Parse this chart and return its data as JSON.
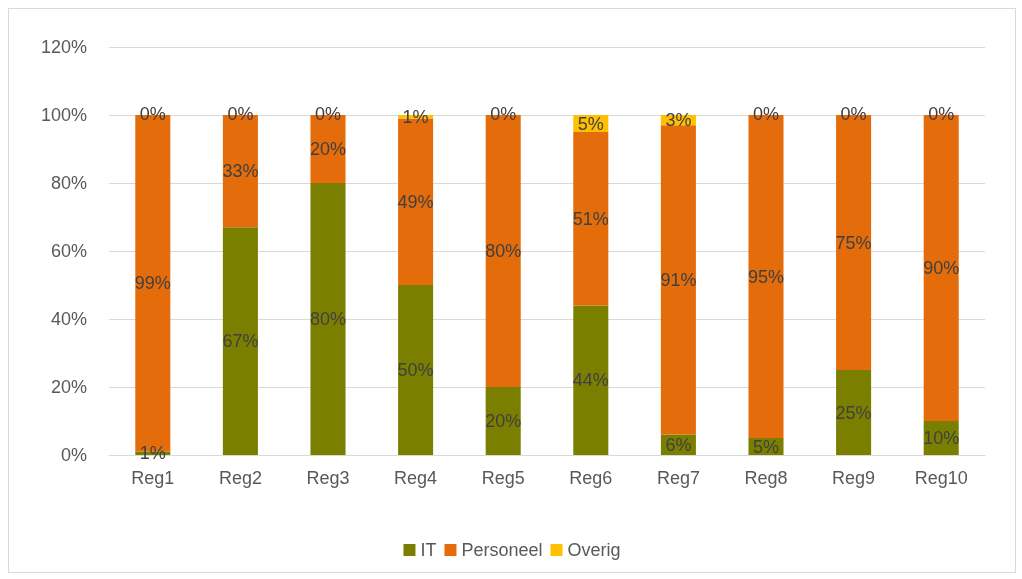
{
  "chart_data": {
    "type": "bar",
    "stacked": true,
    "categories": [
      "Reg1",
      "Reg2",
      "Reg3",
      "Reg4",
      "Reg5",
      "Reg6",
      "Reg7",
      "Reg8",
      "Reg9",
      "Reg10"
    ],
    "series": [
      {
        "name": "IT",
        "color": "#7a7f00",
        "values": [
          1,
          67,
          80,
          50,
          20,
          44,
          6,
          5,
          25,
          10
        ],
        "value_labels": [
          "1%",
          "67%",
          "80%",
          "50%",
          "20%",
          "44%",
          "6%",
          "5%",
          "25%",
          "10%"
        ]
      },
      {
        "name": "Personeel",
        "color": "#e46c0a",
        "values": [
          99,
          33,
          20,
          49,
          80,
          51,
          91,
          95,
          75,
          90
        ],
        "value_labels": [
          "99%",
          "33%",
          "20%",
          "49%",
          "80%",
          "51%",
          "91%",
          "95%",
          "75%",
          "90%"
        ]
      },
      {
        "name": "Overig",
        "color": "#ffc000",
        "values": [
          0,
          0,
          0,
          1,
          0,
          5,
          3,
          0,
          0,
          0
        ],
        "value_labels": [
          "0%",
          "0%",
          "0%",
          "1%",
          "0%",
          "5%",
          "3%",
          "0%",
          "0%",
          "0%"
        ]
      }
    ],
    "ylim": [
      0,
      120
    ],
    "yticks": [
      {
        "value": 0,
        "label": "0%"
      },
      {
        "value": 20,
        "label": "20%"
      },
      {
        "value": 40,
        "label": "40%"
      },
      {
        "value": 60,
        "label": "60%"
      },
      {
        "value": 80,
        "label": "80%"
      },
      {
        "value": 100,
        "label": "100%"
      },
      {
        "value": 120,
        "label": "120%"
      }
    ],
    "grid": "y",
    "legend": "bottom"
  }
}
